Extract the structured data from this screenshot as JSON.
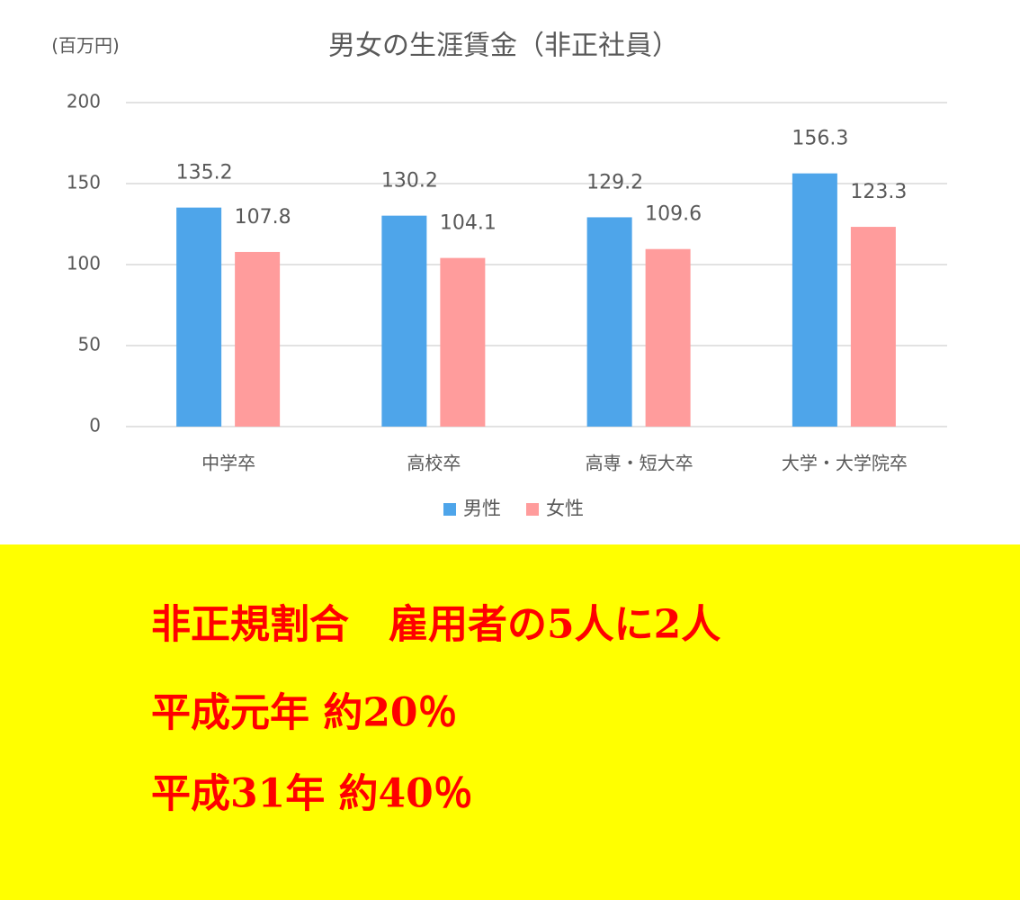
{
  "chart_data": {
    "type": "bar",
    "title": "男女の生涯賃金（非正社員）",
    "y_unit_label": "(百万円)",
    "categories": [
      "中学卒",
      "高校卒",
      "高専・短大卒",
      "大学・大学院卒"
    ],
    "series": [
      {
        "name": "男性",
        "color": "#4ea5ea",
        "values": [
          135.2,
          130.2,
          129.2,
          156.3
        ]
      },
      {
        "name": "女性",
        "color": "#ff9c9c",
        "values": [
          107.8,
          104.1,
          109.6,
          123.3
        ]
      }
    ],
    "ylim": [
      0,
      200
    ],
    "yticks": [
      0,
      50,
      100,
      150,
      200
    ],
    "grid": true,
    "legend": "bottom",
    "annotations": [
      "非正規割合　雇用者の5人に2人",
      "平成元年  約20％",
      "平成31年  約40％"
    ]
  }
}
